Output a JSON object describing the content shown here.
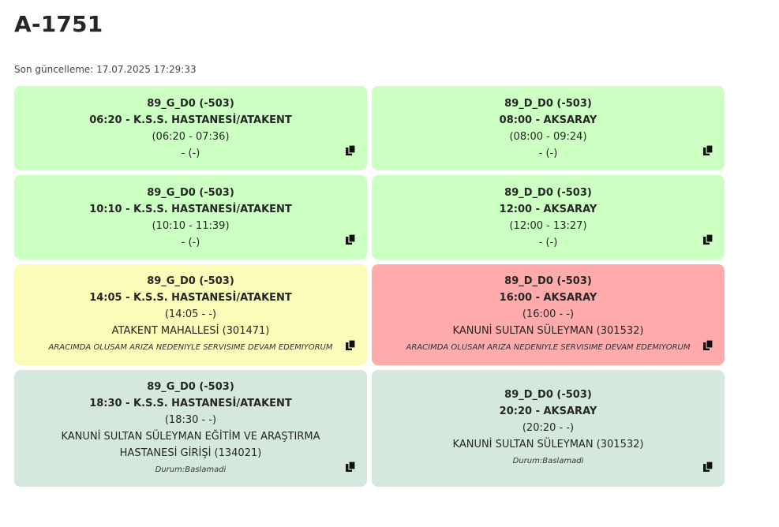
{
  "title": "A-1751",
  "last_update": "Son güncelleme: 17.07.2025 17:29:33",
  "cards": [
    {
      "route": "89_G_D0 (-503)",
      "trip": "06:20 - K.S.S. HASTANESİ/ATAKENT",
      "times": "(06:20 - 07:36)",
      "stop": "- (-)",
      "note": "",
      "color": "green"
    },
    {
      "route": "89_D_D0 (-503)",
      "trip": "08:00 - AKSARAY",
      "times": "(08:00 - 09:24)",
      "stop": "- (-)",
      "note": "",
      "color": "green"
    },
    {
      "route": "89_G_D0 (-503)",
      "trip": "10:10 - K.S.S. HASTANESİ/ATAKENT",
      "times": "(10:10 - 11:39)",
      "stop": "- (-)",
      "note": "",
      "color": "green"
    },
    {
      "route": "89_D_D0 (-503)",
      "trip": "12:00 - AKSARAY",
      "times": "(12:00 - 13:27)",
      "stop": "- (-)",
      "note": "",
      "color": "green"
    },
    {
      "route": "89_G_D0 (-503)",
      "trip": "14:05 - K.S.S. HASTANESİ/ATAKENT",
      "times": "(14:05 - -)",
      "stop": "ATAKENT MAHALLESİ (301471)",
      "note": "ARACIMDA OLUSAM ARIZA NEDENIYLE SERVISIME DEVAM EDEMIYORUM",
      "color": "yellow"
    },
    {
      "route": "89_D_D0 (-503)",
      "trip": "16:00 - AKSARAY",
      "times": "(16:00 - -)",
      "stop": "KANUNİ SULTAN SÜLEYMAN (301532)",
      "note": "ARACIMDA OLUSAM ARIZA NEDENIYLE SERVISIME DEVAM EDEMIYORUM",
      "color": "red"
    },
    {
      "route": "89_G_D0 (-503)",
      "trip": "18:30 - K.S.S. HASTANESİ/ATAKENT",
      "times": "(18:30 - -)",
      "stop": "KANUNİ SULTAN SÜLEYMAN EĞİTİM VE ARAŞTIRMA HASTANESİ GİRİŞİ (134021)",
      "note": "Durum:Baslamadi",
      "color": "gray"
    },
    {
      "route": "89_D_D0 (-503)",
      "trip": "20:20 - AKSARAY",
      "times": "(20:20 - -)",
      "stop": "KANUNİ SULTAN SÜLEYMAN (301532)",
      "note": "Durum:Baslamadi",
      "color": "gray"
    }
  ],
  "icons": {
    "copy": "copy-icon"
  },
  "colors": {
    "green": "#ccffc2",
    "yellow": "#fcfcb9",
    "red": "#ffabab",
    "gray": "#d4e8de"
  }
}
